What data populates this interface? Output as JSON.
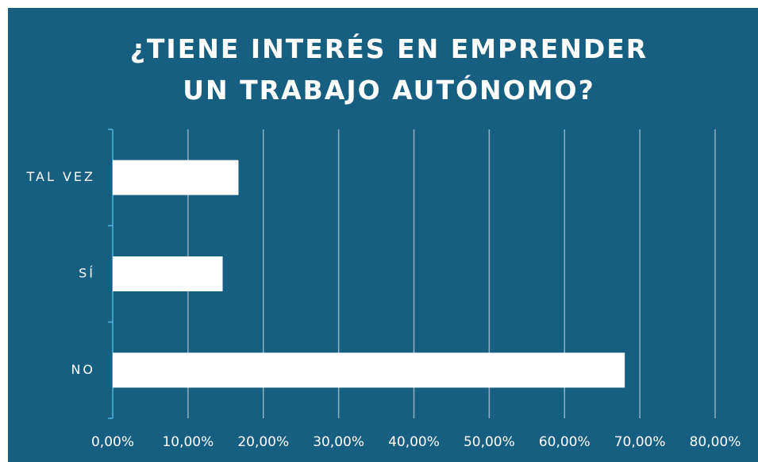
{
  "chart_data": {
    "type": "bar",
    "orientation": "horizontal",
    "title": "¿TIENE INTERÉS EN EMPRENDER UN TRABAJO AUTÓNOMO?",
    "categories": [
      "TAL VEZ",
      "SÍ",
      "NO"
    ],
    "values": [
      16.7,
      14.6,
      68.0
    ],
    "color": "#ffffff",
    "xlim": [
      0,
      80
    ],
    "xticks": [
      {
        "value": 0,
        "label": "0,00%"
      },
      {
        "value": 10,
        "label": "10,00%"
      },
      {
        "value": 20,
        "label": "20,00%"
      },
      {
        "value": 30,
        "label": "30,00%"
      },
      {
        "value": 40,
        "label": "40,00%"
      },
      {
        "value": 50,
        "label": "50,00%"
      },
      {
        "value": 60,
        "label": "60,00%"
      },
      {
        "value": 70,
        "label": "70,00%"
      },
      {
        "value": 80,
        "label": "80,00%"
      }
    ],
    "grid": true
  }
}
